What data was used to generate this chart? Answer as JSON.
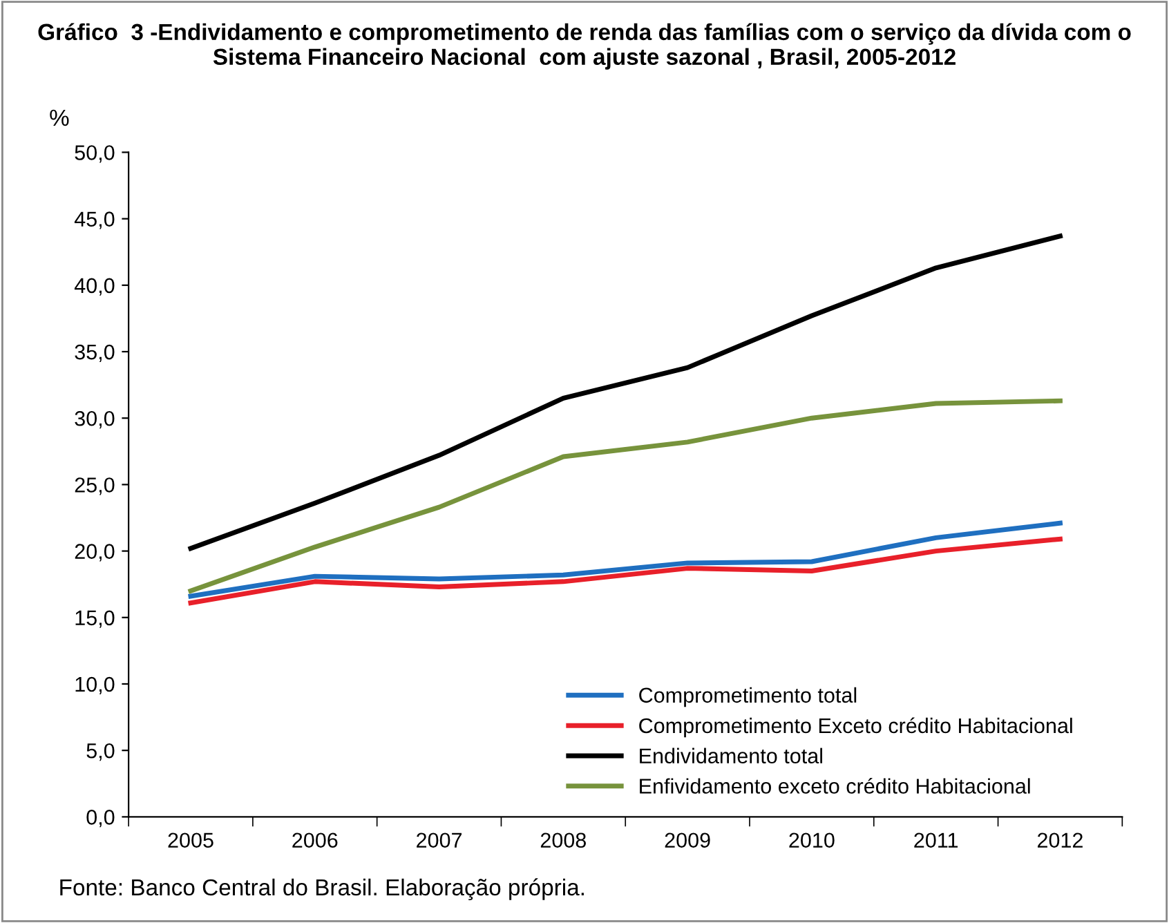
{
  "chart_data": {
    "type": "line",
    "title": "Gráfico  3 -Endividamento e comprometimento de renda das famílias com o serviço da dívida com o Sistema Financeiro Nacional  com ajuste sazonal , Brasil, 2005-2012",
    "ylabel": "%",
    "categories": [
      "2005",
      "2006",
      "2007",
      "2008",
      "2009",
      "2010",
      "2011",
      "2012"
    ],
    "series": [
      {
        "name": "Comprometimento total",
        "color": "#1f6fc0",
        "values": [
          16.6,
          18.1,
          17.9,
          18.2,
          19.1,
          19.2,
          21.0,
          22.1
        ]
      },
      {
        "name": "Comprometimento Exceto crédito Habitacional",
        "color": "#e8202a",
        "values": [
          16.1,
          17.7,
          17.3,
          17.7,
          18.7,
          18.5,
          20.0,
          20.9
        ]
      },
      {
        "name": "Endividamento total",
        "color": "#000000",
        "values": [
          20.2,
          23.6,
          27.2,
          31.5,
          33.8,
          37.7,
          41.3,
          43.7
        ]
      },
      {
        "name": "Enfividamento exceto crédito Habitacional",
        "color": "#77933c",
        "values": [
          17.0,
          20.3,
          23.3,
          27.1,
          28.2,
          30.0,
          31.1,
          31.3
        ]
      }
    ],
    "ylim": [
      0,
      50
    ],
    "yticks": [
      {
        "value": 0,
        "label": "0,0"
      },
      {
        "value": 5,
        "label": "5,0"
      },
      {
        "value": 10,
        "label": "10,0"
      },
      {
        "value": 15,
        "label": "15,0"
      },
      {
        "value": 20,
        "label": "20,0"
      },
      {
        "value": 25,
        "label": "25,0"
      },
      {
        "value": 30,
        "label": "30,0"
      },
      {
        "value": 35,
        "label": "35,0"
      },
      {
        "value": 40,
        "label": "40,0"
      },
      {
        "value": 45,
        "label": "45,0"
      },
      {
        "value": 50,
        "label": "50,0"
      }
    ],
    "legend": "bottom right",
    "marker": "none",
    "line_style": "solid",
    "annotations": [
      "Fonte: Banco Central do Brasil. Elaboração própria."
    ]
  }
}
